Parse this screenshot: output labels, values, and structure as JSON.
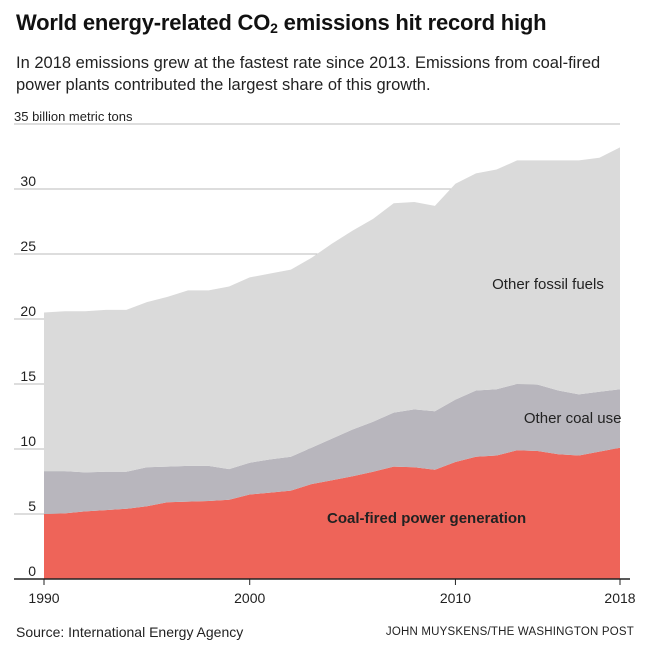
{
  "header": {
    "title_prefix": "World energy-related CO",
    "title_sub": "2",
    "title_suffix": " emissions hit record high",
    "subtitle": "In 2018 emissions grew at the fastest rate since 2013. Emissions from coal-fired power plants contributed the largest share of this growth."
  },
  "footer": {
    "source": "Source: International Energy Agency",
    "credit": "JOHN MUYSKENS/THE WASHINGTON POST"
  },
  "chart_data": {
    "type": "area",
    "stacked": true,
    "title": "World energy-related CO2 emissions hit record high",
    "ylabel": "35 billion metric tons",
    "x": [
      1990,
      1991,
      1992,
      1993,
      1994,
      1995,
      1996,
      1997,
      1998,
      1999,
      2000,
      2001,
      2002,
      2003,
      2004,
      2005,
      2006,
      2007,
      2008,
      2009,
      2010,
      2011,
      2012,
      2013,
      2014,
      2015,
      2016,
      2017,
      2018
    ],
    "xlim": [
      1990,
      2018
    ],
    "ylim": [
      0,
      35
    ],
    "x_ticks": [
      1990,
      2000,
      2010,
      2018
    ],
    "x_tick_labels": [
      "1990",
      "2000",
      "2010",
      "2018"
    ],
    "y_ticks": [
      0,
      5,
      10,
      15,
      20,
      25,
      30,
      35
    ],
    "y_tick_labels": [
      "0",
      "5",
      "10",
      "15",
      "20",
      "25",
      "30"
    ],
    "colors": {
      "coal_power": "#ee6459",
      "other_coal": "#b8b6bd",
      "other_fossil": "#dadada",
      "axis": "#222222",
      "grid": "#bbbbbb",
      "label": "#222222"
    },
    "series": [
      {
        "name": "Coal-fired power generation",
        "key": "coal_power",
        "values": [
          5.0,
          5.05,
          5.2,
          5.3,
          5.4,
          5.6,
          5.9,
          5.95,
          6.0,
          6.1,
          6.5,
          6.65,
          6.8,
          7.3,
          7.6,
          7.9,
          8.25,
          8.65,
          8.6,
          8.4,
          9.0,
          9.4,
          9.5,
          9.9,
          9.85,
          9.6,
          9.5,
          9.8,
          10.1
        ]
      },
      {
        "name": "Other coal use",
        "key": "other_coal",
        "values": [
          3.3,
          3.25,
          3.0,
          2.95,
          2.85,
          3.0,
          2.75,
          2.75,
          2.7,
          2.35,
          2.45,
          2.55,
          2.6,
          2.8,
          3.2,
          3.6,
          3.85,
          4.15,
          4.45,
          4.5,
          4.8,
          5.1,
          5.1,
          5.1,
          5.1,
          4.9,
          4.7,
          4.6,
          4.5
        ]
      },
      {
        "name": "Other fossil fuels",
        "key": "other_fossil",
        "values": [
          12.2,
          12.3,
          12.4,
          12.45,
          12.45,
          12.7,
          13.05,
          13.5,
          13.5,
          14.05,
          14.25,
          14.3,
          14.4,
          14.6,
          15.0,
          15.3,
          15.6,
          16.1,
          15.95,
          15.8,
          16.6,
          16.7,
          16.9,
          17.2,
          17.25,
          17.7,
          18.0,
          18.0,
          18.6
        ]
      }
    ],
    "annotations": [
      {
        "text": "Other fossil fuels",
        "x": 2014.5,
        "y": 22.3,
        "bold": false
      },
      {
        "text": "Other coal use",
        "x": 2015.7,
        "y": 12.0,
        "bold": false
      },
      {
        "text": "Coal-fired power generation",
        "x": 2008.6,
        "y": 4.3,
        "bold": true
      }
    ]
  }
}
